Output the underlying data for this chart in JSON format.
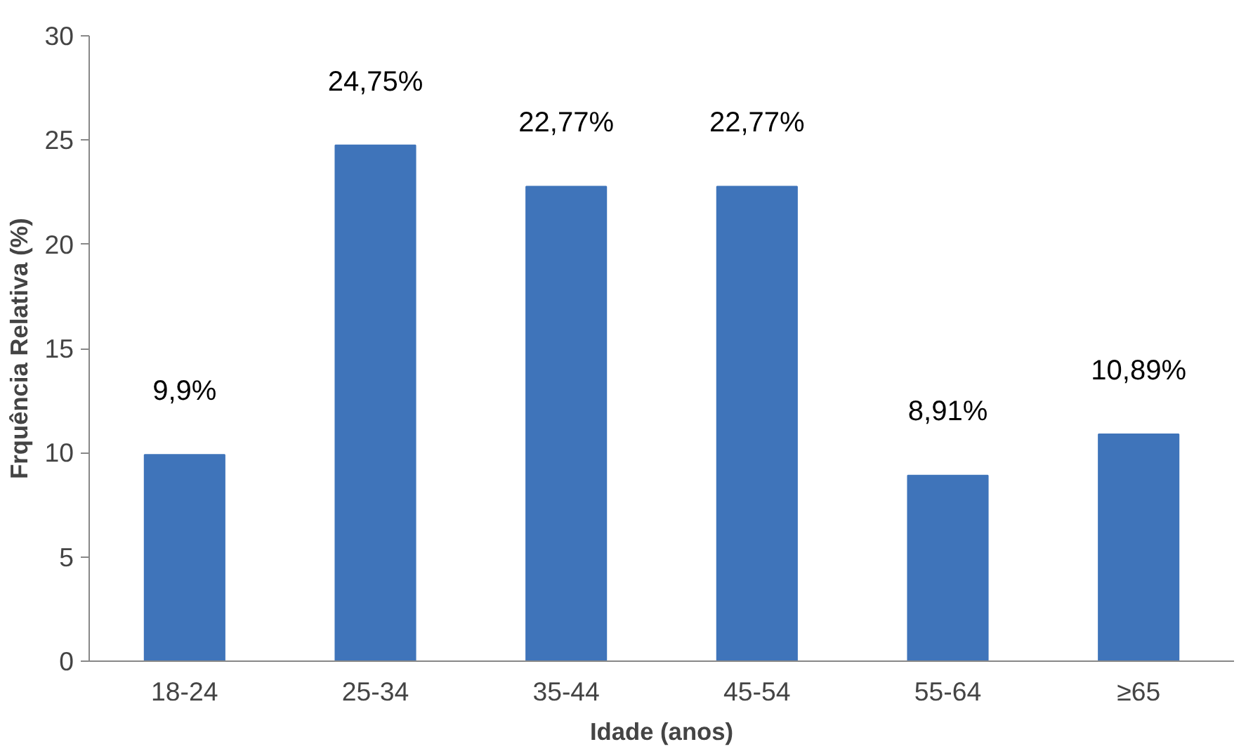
{
  "chart_data": {
    "type": "bar",
    "xlabel": "Idade (anos)",
    "ylabel": "Frquência Relativa (%)",
    "categories": [
      "18-24",
      "25-34",
      "35-44",
      "45-54",
      "55-64",
      "≥65"
    ],
    "values": [
      9.9,
      24.75,
      22.77,
      22.77,
      8.91,
      10.89
    ],
    "value_labels": [
      "9,9%",
      "24,75%",
      "22,77%",
      "22,77%",
      "8,91%",
      "10,89%"
    ],
    "color": "#3f74ba",
    "ylim": [
      0,
      30
    ],
    "yticks": [
      0,
      5,
      10,
      15,
      20,
      25,
      30
    ],
    "grid": false
  }
}
